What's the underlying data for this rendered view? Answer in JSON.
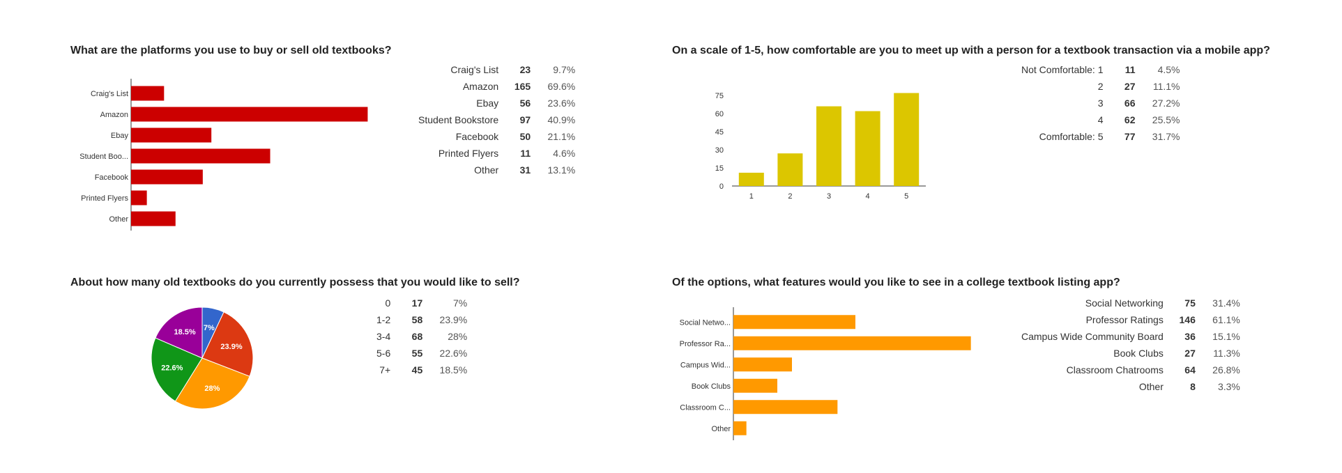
{
  "questions": [
    {
      "title": "What are the platforms you use to buy or sell old textbooks?",
      "stats": [
        {
          "label": "Craig's List",
          "count": "23",
          "pct": "9.7%"
        },
        {
          "label": "Amazon",
          "count": "165",
          "pct": "69.6%"
        },
        {
          "label": "Ebay",
          "count": "56",
          "pct": "23.6%"
        },
        {
          "label": "Student Bookstore",
          "count": "97",
          "pct": "40.9%"
        },
        {
          "label": "Facebook",
          "count": "50",
          "pct": "21.1%"
        },
        {
          "label": "Printed Flyers",
          "count": "11",
          "pct": "4.6%"
        },
        {
          "label": "Other",
          "count": "31",
          "pct": "13.1%"
        }
      ]
    },
    {
      "title": "On a scale of 1-5, how comfortable are you to meet up with a person for a textbook transaction via a mobile app?",
      "stats": [
        {
          "label": "Not Comfortable: 1",
          "count": "11",
          "pct": "4.5%"
        },
        {
          "label": "2",
          "count": "27",
          "pct": "11.1%"
        },
        {
          "label": "3",
          "count": "66",
          "pct": "27.2%"
        },
        {
          "label": "4",
          "count": "62",
          "pct": "25.5%"
        },
        {
          "label": "Comfortable: 5",
          "count": "77",
          "pct": "31.7%"
        }
      ]
    },
    {
      "title": "About how many old textbooks do you currently possess that you would like to sell?",
      "stats": [
        {
          "label": "0",
          "count": "17",
          "pct": "7%"
        },
        {
          "label": "1-2",
          "count": "58",
          "pct": "23.9%"
        },
        {
          "label": "3-4",
          "count": "68",
          "pct": "28%"
        },
        {
          "label": "5-6",
          "count": "55",
          "pct": "22.6%"
        },
        {
          "label": "7+",
          "count": "45",
          "pct": "18.5%"
        }
      ]
    },
    {
      "title": "Of the options, what features would you like to see in a college textbook listing app?",
      "stats": [
        {
          "label": "Social Networking",
          "count": "75",
          "pct": "31.4%"
        },
        {
          "label": "Professor Ratings",
          "count": "146",
          "pct": "61.1%"
        },
        {
          "label": "Campus Wide Community Board",
          "count": "36",
          "pct": "15.1%"
        },
        {
          "label": "Book Clubs",
          "count": "27",
          "pct": "11.3%"
        },
        {
          "label": "Classroom Chatrooms",
          "count": "64",
          "pct": "26.8%"
        },
        {
          "label": "Other",
          "count": "8",
          "pct": "3.3%"
        }
      ]
    }
  ],
  "chart_data": [
    {
      "type": "bar",
      "orientation": "horizontal",
      "categories": [
        "Craig's List",
        "Amazon",
        "Ebay",
        "Student Boo...",
        "Facebook",
        "Printed Flyers",
        "Other"
      ],
      "values": [
        23,
        165,
        56,
        97,
        50,
        11,
        31
      ],
      "xlim": [
        0,
        175
      ],
      "color": "#cc0000",
      "grid": false
    },
    {
      "type": "bar",
      "orientation": "vertical",
      "categories": [
        "1",
        "2",
        "3",
        "4",
        "5"
      ],
      "values": [
        11,
        27,
        66,
        62,
        77
      ],
      "ylim": [
        0,
        75
      ],
      "yticks": [
        0,
        15,
        30,
        45,
        60,
        75
      ],
      "color": "#dcc600",
      "grid": false
    },
    {
      "type": "pie",
      "categories": [
        "0",
        "1-2",
        "3-4",
        "5-6",
        "7+"
      ],
      "values": [
        17,
        58,
        68,
        55,
        45
      ],
      "slice_labels": [
        "7%",
        "23.9%",
        "28%",
        "22.6%",
        "18.5%"
      ],
      "colors": [
        "#3366cc",
        "#dc3912",
        "#ff9900",
        "#109618",
        "#990099"
      ]
    },
    {
      "type": "bar",
      "orientation": "horizontal",
      "categories": [
        "Social Netwo...",
        "Professor Ra...",
        "Campus Wid...",
        "Book Clubs",
        "Classroom C...",
        "Other"
      ],
      "values": [
        75,
        146,
        36,
        27,
        64,
        8
      ],
      "xlim": [
        0,
        150
      ],
      "color": "#ff9900",
      "grid": false
    }
  ]
}
